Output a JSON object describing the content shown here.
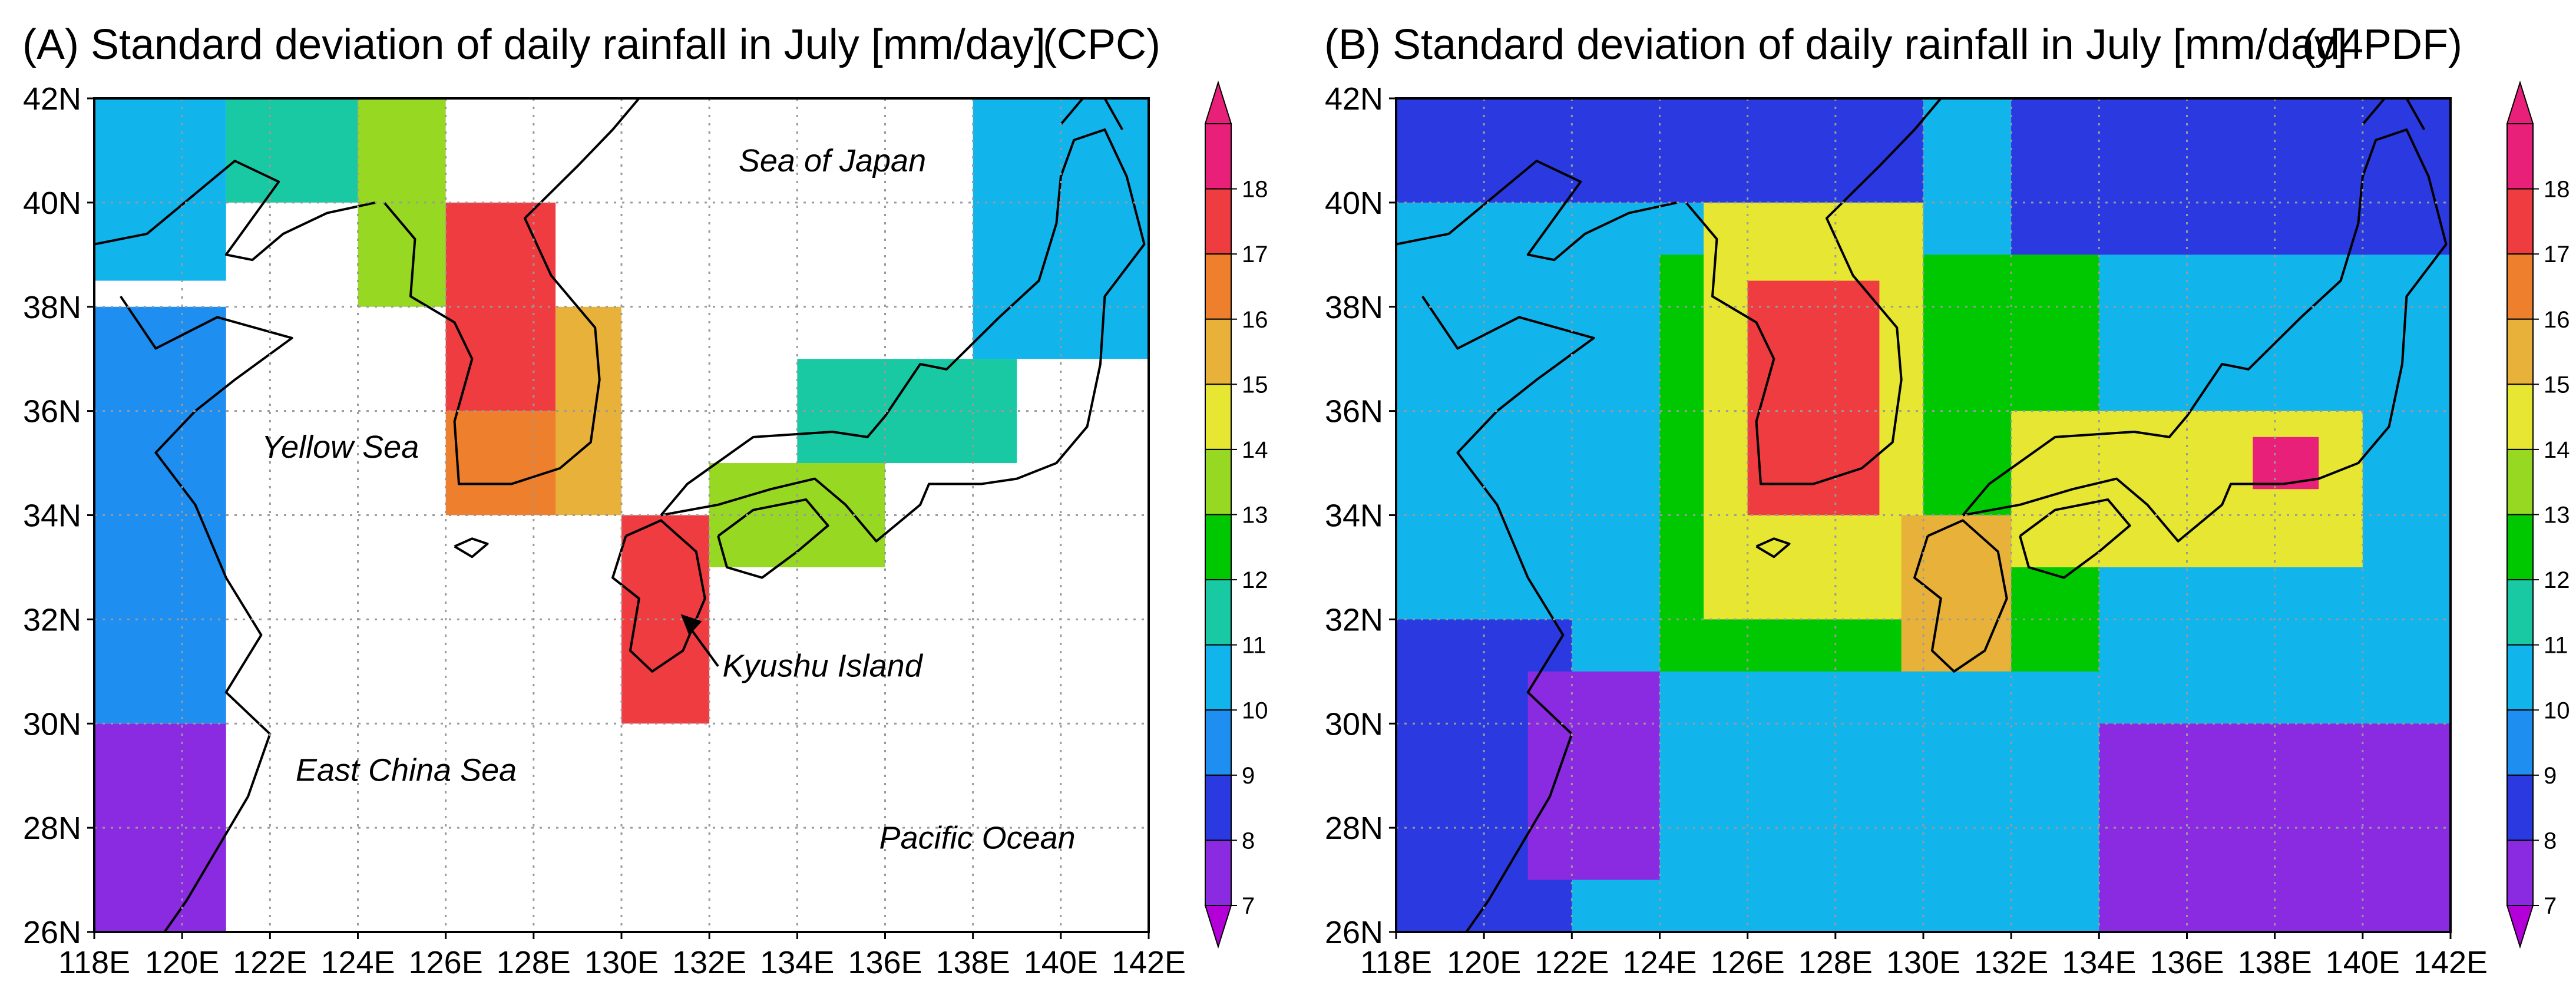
{
  "chart_data": [
    {
      "type": "heatmap",
      "panel": "A",
      "title": "(A) Standard deviation of daily rainfall in July [mm/day]",
      "source": "(CPC)",
      "x_ticks": [
        "118E",
        "120E",
        "122E",
        "124E",
        "126E",
        "128E",
        "130E",
        "132E",
        "134E",
        "136E",
        "138E",
        "140E",
        "142E"
      ],
      "y_ticks": [
        "26N",
        "28N",
        "30N",
        "32N",
        "34N",
        "36N",
        "38N",
        "40N",
        "42N"
      ],
      "xlim": [
        118,
        142
      ],
      "ylim": [
        26,
        42
      ],
      "grid": true,
      "annotations": [
        "Sea of Japan",
        "Yellow Sea",
        "East China Sea",
        "Pacific Ocean",
        "Kyushu Island"
      ],
      "regions": [
        {
          "lon": [
            118,
            121
          ],
          "lat": [
            38.5,
            42
          ],
          "value": 10
        },
        {
          "lon": [
            121,
            124
          ],
          "lat": [
            40,
            42
          ],
          "value": 11
        },
        {
          "lon": [
            124,
            126
          ],
          "lat": [
            38,
            42
          ],
          "value": 13
        },
        {
          "lon": [
            126,
            128.5
          ],
          "lat": [
            36,
            40
          ],
          "value": 17
        },
        {
          "lon": [
            126,
            129
          ],
          "lat": [
            34,
            36
          ],
          "value": 16
        },
        {
          "lon": [
            128.5,
            130
          ],
          "lat": [
            34,
            38
          ],
          "value": 15
        },
        {
          "lon": [
            118,
            121
          ],
          "lat": [
            30,
            38
          ],
          "value": 9
        },
        {
          "lon": [
            118,
            121
          ],
          "lat": [
            26,
            30
          ],
          "value": 7
        },
        {
          "lon": [
            130,
            132
          ],
          "lat": [
            30,
            34
          ],
          "value": 17
        },
        {
          "lon": [
            132,
            136
          ],
          "lat": [
            33,
            35
          ],
          "value": 13
        },
        {
          "lon": [
            134,
            139
          ],
          "lat": [
            35,
            37
          ],
          "value": 11
        },
        {
          "lon": [
            138,
            142
          ],
          "lat": [
            37,
            42
          ],
          "value": 10
        }
      ]
    },
    {
      "type": "heatmap",
      "panel": "B",
      "title": "(B) Standard deviation of daily rainfall in July [mm/day]",
      "source": "(d4PDF)",
      "x_ticks": [
        "118E",
        "120E",
        "122E",
        "124E",
        "126E",
        "128E",
        "130E",
        "132E",
        "134E",
        "136E",
        "138E",
        "140E",
        "142E"
      ],
      "y_ticks": [
        "26N",
        "28N",
        "30N",
        "32N",
        "34N",
        "36N",
        "38N",
        "40N",
        "42N"
      ],
      "xlim": [
        118,
        142
      ],
      "ylim": [
        26,
        42
      ],
      "grid": true,
      "regions": [
        {
          "lon": [
            118,
            142
          ],
          "lat": [
            26,
            42
          ],
          "value": 10
        },
        {
          "lon": [
            118,
            122
          ],
          "lat": [
            26,
            32
          ],
          "value": 8
        },
        {
          "lon": [
            121,
            124
          ],
          "lat": [
            27,
            31
          ],
          "value": 7
        },
        {
          "lon": [
            134,
            142
          ],
          "lat": [
            26,
            30
          ],
          "value": 7
        },
        {
          "lon": [
            118,
            130
          ],
          "lat": [
            40,
            42
          ],
          "value": 8
        },
        {
          "lon": [
            132,
            142
          ],
          "lat": [
            39,
            42
          ],
          "value": 8
        },
        {
          "lon": [
            124,
            134
          ],
          "lat": [
            31,
            39
          ],
          "value": 12
        },
        {
          "lon": [
            125,
            130
          ],
          "lat": [
            32,
            40
          ],
          "value": 14
        },
        {
          "lon": [
            126,
            129
          ],
          "lat": [
            34,
            38.5
          ],
          "value": 17
        },
        {
          "lon": [
            129.5,
            132
          ],
          "lat": [
            31,
            34
          ],
          "value": 15
        },
        {
          "lon": [
            132,
            140
          ],
          "lat": [
            33,
            36
          ],
          "value": 14
        },
        {
          "lon": [
            137.5,
            139
          ],
          "lat": [
            34.5,
            35.5
          ],
          "value": 18
        }
      ]
    }
  ],
  "colorbar": {
    "labels": [
      "7",
      "8",
      "9",
      "10",
      "11",
      "12",
      "13",
      "14",
      "15",
      "16",
      "17",
      "18"
    ],
    "colors": [
      "#b400d8",
      "#8a2be2",
      "#2a3ae0",
      "#1e8ff0",
      "#12b4ec",
      "#19c9a4",
      "#00c800",
      "#96d822",
      "#e6e633",
      "#e8b23a",
      "#ed7f2d",
      "#ee3c40",
      "#e8207a",
      "#e8207a"
    ]
  }
}
